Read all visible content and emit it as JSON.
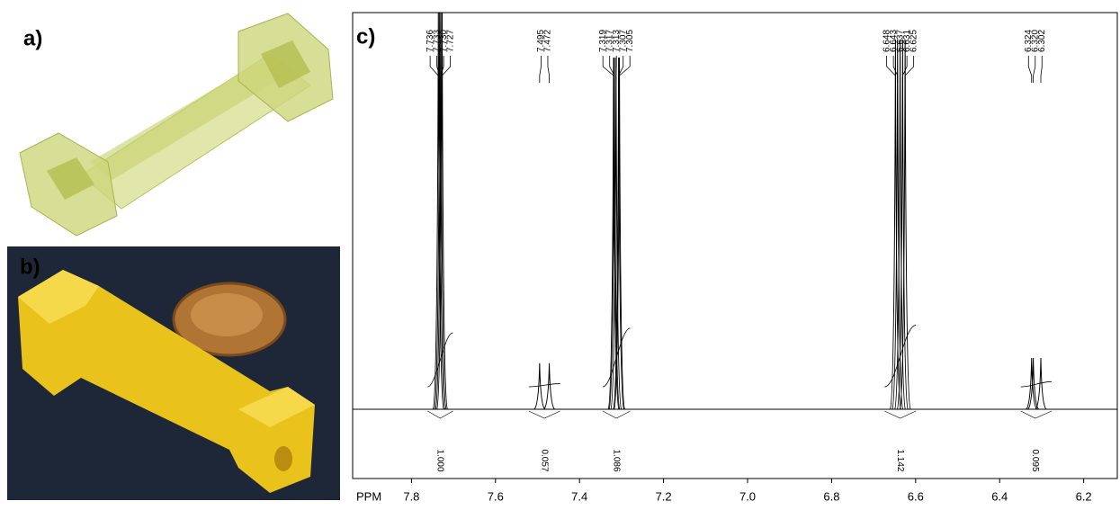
{
  "panels": {
    "a": {
      "label": "a)"
    },
    "b": {
      "label": "b)"
    }
  },
  "chart_data": {
    "type": "nmr",
    "label": "c)",
    "x_label": "PPM",
    "xlim": [
      7.94,
      6.12
    ],
    "xticks": [
      7.8,
      7.6,
      7.4,
      7.2,
      {
        "value": 7,
        "label": "7.0"
      },
      6.8,
      6.6,
      6.4,
      6.2
    ],
    "multiplets": [
      {
        "peaks": [
          7.736,
          7.733,
          {
            "value": 7.73,
            "label": "7.730"
          },
          7.727
        ],
        "integral": {
          "value": 1,
          "label": "1.000"
        }
      },
      {
        "peaks": [
          7.495,
          7.472
        ],
        "integral": 0.057
      },
      {
        "peaks": [
          7.319,
          7.317,
          7.313,
          7.307,
          7.305
        ],
        "integral": 1.086
      },
      {
        "peaks": [
          6.648,
          6.643,
          6.637,
          6.631,
          6.625
        ],
        "integral": 1.142
      },
      {
        "peaks": [
          6.324,
          {
            "value": 6.32,
            "label": "6.320"
          },
          6.302
        ],
        "integral": 0.095
      }
    ]
  }
}
